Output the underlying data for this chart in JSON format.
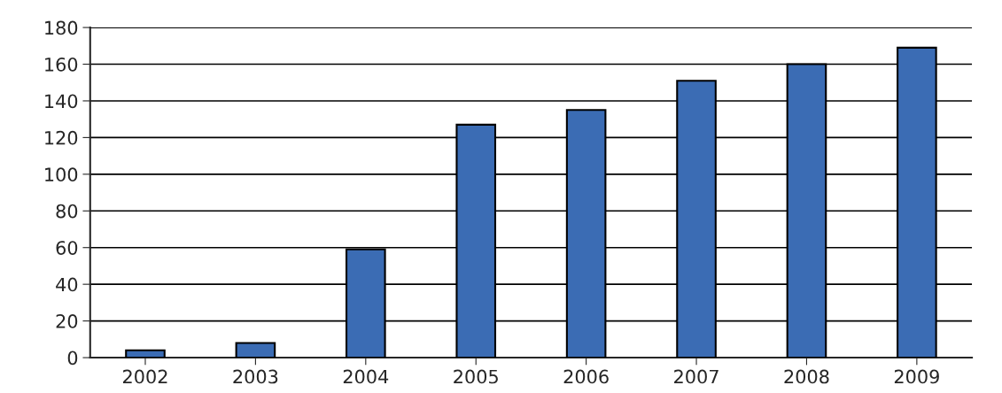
{
  "chart_data": {
    "type": "bar",
    "categories": [
      "2002",
      "2003",
      "2004",
      "2005",
      "2006",
      "2007",
      "2008",
      "2009"
    ],
    "values": [
      4,
      8,
      59,
      127,
      135,
      151,
      160,
      169
    ],
    "color": "#3b6cb4",
    "ylim": [
      0,
      180
    ],
    "yticks": [
      0,
      20,
      40,
      60,
      80,
      100,
      120,
      140,
      160,
      180
    ],
    "grid": "y",
    "legend": false
  }
}
